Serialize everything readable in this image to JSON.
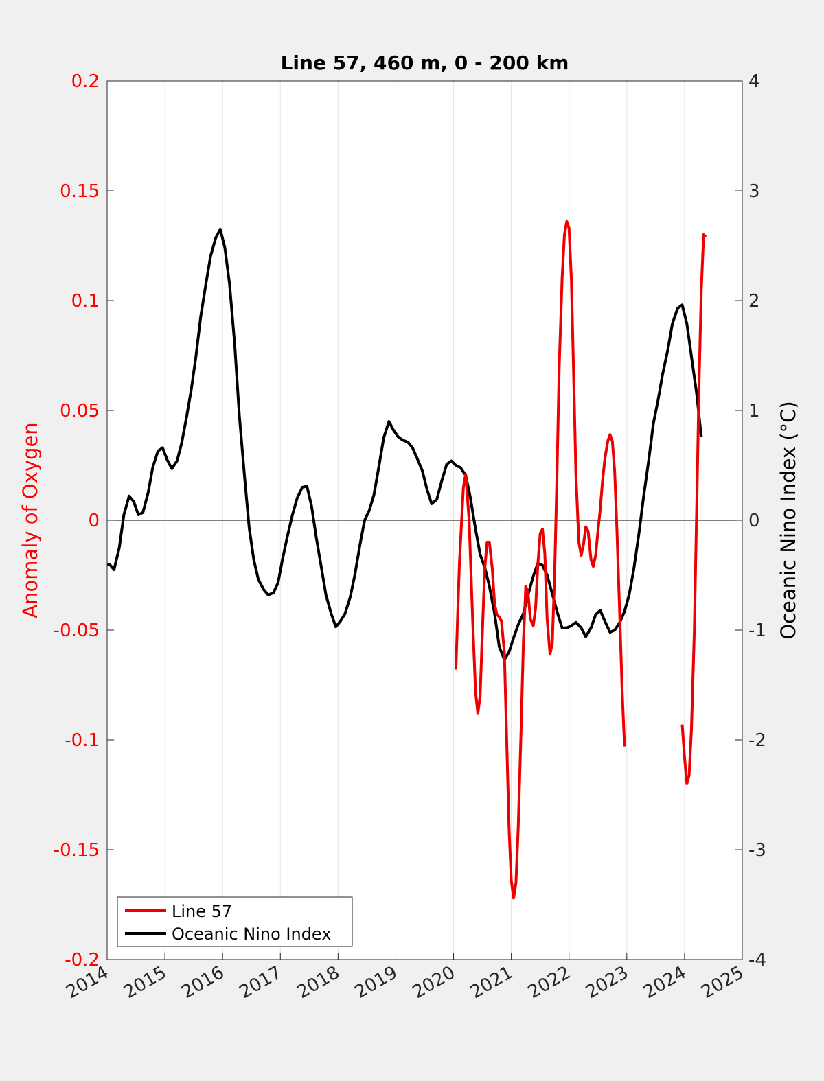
{
  "chart_data": {
    "type": "line",
    "title": "Line 57, 460 m, 0 - 200 km",
    "xlabel": "",
    "ylabel_left": "Anomaly of Oxygen",
    "ylabel_right": "Oceanic Nino Index (°C)",
    "xlim": [
      2014,
      2025
    ],
    "ylim_left": [
      -0.2,
      0.2
    ],
    "ylim_right": [
      -4,
      4
    ],
    "x_ticks": [
      "2014",
      "2015",
      "2016",
      "2017",
      "2018",
      "2019",
      "2020",
      "2021",
      "2022",
      "2023",
      "2024",
      "2025"
    ],
    "y_left_ticks": [
      "-0.2",
      "-0.15",
      "-0.1",
      "-0.05",
      "0",
      "0.05",
      "0.1",
      "0.15",
      "0.2"
    ],
    "y_right_ticks": [
      "-4",
      "-3",
      "-2",
      "-1",
      "0",
      "1",
      "2",
      "3",
      "4"
    ],
    "grid": "vertical",
    "zero_line": true,
    "legend_position": "bottom-left",
    "colors": {
      "left_axis": "#ff0000",
      "line57": "#ee0000",
      "oni": "#000000"
    },
    "series": [
      {
        "name": "Line 57",
        "axis": "left",
        "segments": [
          [
            [
              2020.04,
              -0.068
            ],
            [
              2020.1,
              -0.02
            ],
            [
              2020.17,
              0.015
            ],
            [
              2020.21,
              0.021
            ],
            [
              2020.27,
              0.0
            ],
            [
              2020.33,
              -0.045
            ],
            [
              2020.38,
              -0.078
            ],
            [
              2020.42,
              -0.088
            ],
            [
              2020.46,
              -0.08
            ],
            [
              2020.5,
              -0.05
            ],
            [
              2020.54,
              -0.022
            ],
            [
              2020.58,
              -0.01
            ],
            [
              2020.62,
              -0.01
            ],
            [
              2020.67,
              -0.022
            ],
            [
              2020.71,
              -0.038
            ],
            [
              2020.75,
              -0.043
            ],
            [
              2020.79,
              -0.044
            ],
            [
              2020.83,
              -0.046
            ],
            [
              2020.88,
              -0.06
            ],
            [
              2020.92,
              -0.1
            ],
            [
              2020.96,
              -0.14
            ],
            [
              2021.0,
              -0.164
            ],
            [
              2021.04,
              -0.172
            ],
            [
              2021.08,
              -0.165
            ],
            [
              2021.12,
              -0.14
            ],
            [
              2021.17,
              -0.095
            ],
            [
              2021.21,
              -0.055
            ],
            [
              2021.25,
              -0.03
            ],
            [
              2021.29,
              -0.033
            ],
            [
              2021.33,
              -0.045
            ],
            [
              2021.38,
              -0.048
            ],
            [
              2021.42,
              -0.04
            ],
            [
              2021.46,
              -0.02
            ],
            [
              2021.5,
              -0.006
            ],
            [
              2021.54,
              -0.004
            ],
            [
              2021.58,
              -0.015
            ],
            [
              2021.62,
              -0.045
            ],
            [
              2021.67,
              -0.061
            ],
            [
              2021.71,
              -0.056
            ],
            [
              2021.75,
              -0.025
            ],
            [
              2021.79,
              0.02
            ],
            [
              2021.83,
              0.07
            ],
            [
              2021.88,
              0.11
            ],
            [
              2021.92,
              0.13
            ],
            [
              2021.96,
              0.136
            ],
            [
              2022.0,
              0.133
            ],
            [
              2022.04,
              0.11
            ],
            [
              2022.08,
              0.065
            ],
            [
              2022.12,
              0.02
            ],
            [
              2022.17,
              -0.01
            ],
            [
              2022.21,
              -0.016
            ],
            [
              2022.25,
              -0.011
            ],
            [
              2022.29,
              -0.003
            ],
            [
              2022.33,
              -0.005
            ],
            [
              2022.38,
              -0.018
            ],
            [
              2022.42,
              -0.021
            ],
            [
              2022.46,
              -0.016
            ],
            [
              2022.5,
              -0.005
            ],
            [
              2022.54,
              0.005
            ],
            [
              2022.58,
              0.018
            ],
            [
              2022.62,
              0.028
            ],
            [
              2022.67,
              0.036
            ],
            [
              2022.71,
              0.039
            ],
            [
              2022.75,
              0.036
            ],
            [
              2022.79,
              0.022
            ],
            [
              2022.83,
              -0.005
            ],
            [
              2022.88,
              -0.045
            ],
            [
              2022.92,
              -0.078
            ],
            [
              2022.96,
              -0.103
            ]
          ],
          [
            [
              2023.96,
              -0.093
            ],
            [
              2024.0,
              -0.108
            ],
            [
              2024.04,
              -0.12
            ],
            [
              2024.08,
              -0.116
            ],
            [
              2024.12,
              -0.095
            ],
            [
              2024.17,
              -0.05
            ],
            [
              2024.21,
              0.005
            ],
            [
              2024.25,
              0.06
            ],
            [
              2024.29,
              0.105
            ],
            [
              2024.33,
              0.13
            ],
            [
              2024.37,
              0.129
            ]
          ]
        ]
      },
      {
        "name": "Oceanic Nino Index",
        "axis": "right",
        "segments": [
          [
            [
              2014.0,
              -0.4
            ],
            [
              2014.04,
              -0.4
            ],
            [
              2014.12,
              -0.45
            ],
            [
              2014.21,
              -0.25
            ],
            [
              2014.29,
              0.05
            ],
            [
              2014.38,
              0.22
            ],
            [
              2014.46,
              0.17
            ],
            [
              2014.54,
              0.05
            ],
            [
              2014.62,
              0.07
            ],
            [
              2014.71,
              0.25
            ],
            [
              2014.79,
              0.48
            ],
            [
              2014.88,
              0.63
            ],
            [
              2014.96,
              0.66
            ],
            [
              2015.04,
              0.55
            ],
            [
              2015.12,
              0.47
            ],
            [
              2015.21,
              0.54
            ],
            [
              2015.29,
              0.7
            ],
            [
              2015.38,
              0.95
            ],
            [
              2015.46,
              1.2
            ],
            [
              2015.54,
              1.5
            ],
            [
              2015.62,
              1.85
            ],
            [
              2015.71,
              2.15
            ],
            [
              2015.79,
              2.4
            ],
            [
              2015.88,
              2.57
            ],
            [
              2015.96,
              2.65
            ],
            [
              2016.04,
              2.48
            ],
            [
              2016.12,
              2.15
            ],
            [
              2016.21,
              1.6
            ],
            [
              2016.29,
              0.95
            ],
            [
              2016.38,
              0.4
            ],
            [
              2016.46,
              -0.07
            ],
            [
              2016.54,
              -0.36
            ],
            [
              2016.62,
              -0.54
            ],
            [
              2016.71,
              -0.63
            ],
            [
              2016.79,
              -0.68
            ],
            [
              2016.88,
              -0.66
            ],
            [
              2016.96,
              -0.57
            ],
            [
              2017.04,
              -0.35
            ],
            [
              2017.12,
              -0.15
            ],
            [
              2017.21,
              0.05
            ],
            [
              2017.29,
              0.2
            ],
            [
              2017.38,
              0.3
            ],
            [
              2017.46,
              0.31
            ],
            [
              2017.54,
              0.13
            ],
            [
              2017.62,
              -0.15
            ],
            [
              2017.71,
              -0.43
            ],
            [
              2017.79,
              -0.68
            ],
            [
              2017.88,
              -0.85
            ],
            [
              2017.96,
              -0.97
            ],
            [
              2018.04,
              -0.92
            ],
            [
              2018.12,
              -0.85
            ],
            [
              2018.21,
              -0.7
            ],
            [
              2018.29,
              -0.5
            ],
            [
              2018.38,
              -0.22
            ],
            [
              2018.46,
              0.0
            ],
            [
              2018.54,
              0.09
            ],
            [
              2018.62,
              0.23
            ],
            [
              2018.71,
              0.5
            ],
            [
              2018.79,
              0.75
            ],
            [
              2018.88,
              0.9
            ],
            [
              2018.96,
              0.82
            ],
            [
              2019.04,
              0.76
            ],
            [
              2019.12,
              0.73
            ],
            [
              2019.21,
              0.71
            ],
            [
              2019.29,
              0.66
            ],
            [
              2019.38,
              0.55
            ],
            [
              2019.46,
              0.45
            ],
            [
              2019.54,
              0.28
            ],
            [
              2019.62,
              0.15
            ],
            [
              2019.71,
              0.19
            ],
            [
              2019.79,
              0.35
            ],
            [
              2019.88,
              0.51
            ],
            [
              2019.96,
              0.54
            ],
            [
              2020.04,
              0.5
            ],
            [
              2020.12,
              0.48
            ],
            [
              2020.21,
              0.41
            ],
            [
              2020.29,
              0.21
            ],
            [
              2020.38,
              -0.08
            ],
            [
              2020.46,
              -0.31
            ],
            [
              2020.54,
              -0.43
            ],
            [
              2020.62,
              -0.6
            ],
            [
              2020.71,
              -0.85
            ],
            [
              2020.79,
              -1.15
            ],
            [
              2020.88,
              -1.27
            ],
            [
              2020.96,
              -1.2
            ],
            [
              2021.04,
              -1.07
            ],
            [
              2021.12,
              -0.95
            ],
            [
              2021.21,
              -0.85
            ],
            [
              2021.29,
              -0.68
            ],
            [
              2021.38,
              -0.51
            ],
            [
              2021.46,
              -0.39
            ],
            [
              2021.54,
              -0.41
            ],
            [
              2021.62,
              -0.5
            ],
            [
              2021.71,
              -0.67
            ],
            [
              2021.79,
              -0.83
            ],
            [
              2021.88,
              -0.98
            ],
            [
              2021.96,
              -0.98
            ],
            [
              2022.04,
              -0.96
            ],
            [
              2022.12,
              -0.93
            ],
            [
              2022.21,
              -0.98
            ],
            [
              2022.29,
              -1.06
            ],
            [
              2022.38,
              -0.98
            ],
            [
              2022.46,
              -0.86
            ],
            [
              2022.54,
              -0.82
            ],
            [
              2022.62,
              -0.92
            ],
            [
              2022.71,
              -1.02
            ],
            [
              2022.79,
              -1.0
            ],
            [
              2022.88,
              -0.93
            ],
            [
              2022.96,
              -0.83
            ],
            [
              2023.04,
              -0.68
            ],
            [
              2023.12,
              -0.45
            ],
            [
              2023.21,
              -0.12
            ],
            [
              2023.29,
              0.21
            ],
            [
              2023.38,
              0.55
            ],
            [
              2023.46,
              0.88
            ],
            [
              2023.54,
              1.09
            ],
            [
              2023.62,
              1.33
            ],
            [
              2023.71,
              1.55
            ],
            [
              2023.79,
              1.79
            ],
            [
              2023.88,
              1.93
            ],
            [
              2023.96,
              1.96
            ],
            [
              2024.04,
              1.79
            ],
            [
              2024.12,
              1.49
            ],
            [
              2024.21,
              1.15
            ],
            [
              2024.29,
              0.76
            ]
          ]
        ]
      }
    ]
  }
}
